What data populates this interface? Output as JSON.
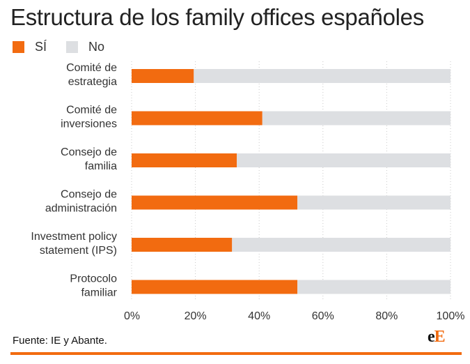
{
  "title": "Estructura de los family offices españoles",
  "colors": {
    "si": "#f26b10",
    "no": "#dddfe2",
    "rule": "#f26b10",
    "text": "#333333"
  },
  "legend": [
    {
      "label": "SÍ",
      "color": "#f26b10"
    },
    {
      "label": "No",
      "color": "#dddfe2"
    }
  ],
  "chart_data": {
    "type": "bar",
    "orientation": "horizontal",
    "stacked": true,
    "categories": [
      [
        "Comité de",
        "estrategia"
      ],
      [
        "Comité de",
        "inversiones"
      ],
      [
        "Consejo de",
        "familia"
      ],
      [
        "Consejo de",
        "administración"
      ],
      [
        "Investment policy",
        "statement (IPS)"
      ],
      [
        "Protocolo",
        "familiar"
      ]
    ],
    "series": [
      {
        "name": "SÍ",
        "color": "#f26b10",
        "values": [
          19.5,
          41,
          33,
          52,
          31.5,
          52
        ]
      },
      {
        "name": "No",
        "color": "#dddfe2",
        "values": [
          80.5,
          59,
          67,
          48,
          68.5,
          48
        ]
      }
    ],
    "xlim": [
      0,
      100
    ],
    "xticks": [
      "0%",
      "20%",
      "40%",
      "60%",
      "80%",
      "100%"
    ],
    "grid": true
  },
  "source": "Fuente: IE y Abante.",
  "logo": {
    "main": "e",
    "accent": "E"
  }
}
